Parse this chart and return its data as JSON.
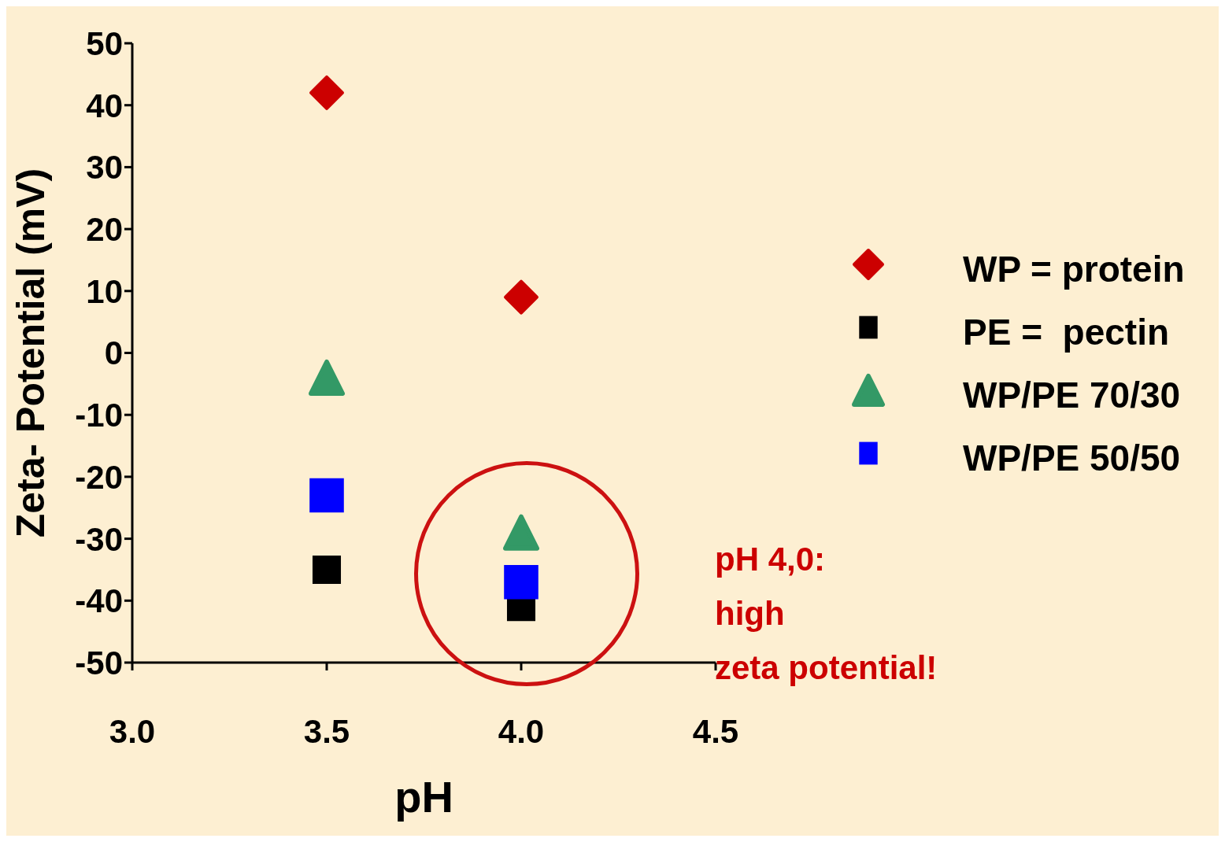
{
  "chart_data": {
    "type": "scatter",
    "xlabel": "pH",
    "ylabel": "Zeta- Potential (mV)",
    "x": [
      3.5,
      4.0
    ],
    "series": [
      {
        "name": "WP = protein",
        "color": "#cc0000",
        "marker": "diamond",
        "values": [
          42,
          9
        ]
      },
      {
        "name": "PE =  pectin",
        "color": "#000000",
        "marker": "square",
        "values": [
          -35,
          -41
        ]
      },
      {
        "name": "WP/PE 70/30",
        "color": "#339966",
        "marker": "triangle",
        "values": [
          -4,
          -29
        ]
      },
      {
        "name": "WP/PE 50/50",
        "color": "#0000ff",
        "marker": "square",
        "values": [
          -23,
          -37
        ]
      }
    ],
    "xlim": [
      3.0,
      4.5
    ],
    "xticks": [
      {
        "value": 3.0,
        "label": "3.0"
      },
      {
        "value": 3.5,
        "label": "3.5"
      },
      {
        "value": 4.0,
        "label": "4.0"
      },
      {
        "value": 4.5,
        "label": "4.5"
      }
    ],
    "ylim": [
      -50,
      50
    ],
    "yticks": [
      -50,
      -40,
      -30,
      -20,
      -10,
      0,
      10,
      20,
      30,
      40,
      50
    ],
    "legend": "right",
    "grid": false,
    "annotations": [
      "pH 4,0:",
      "high",
      "zeta potential!"
    ]
  }
}
